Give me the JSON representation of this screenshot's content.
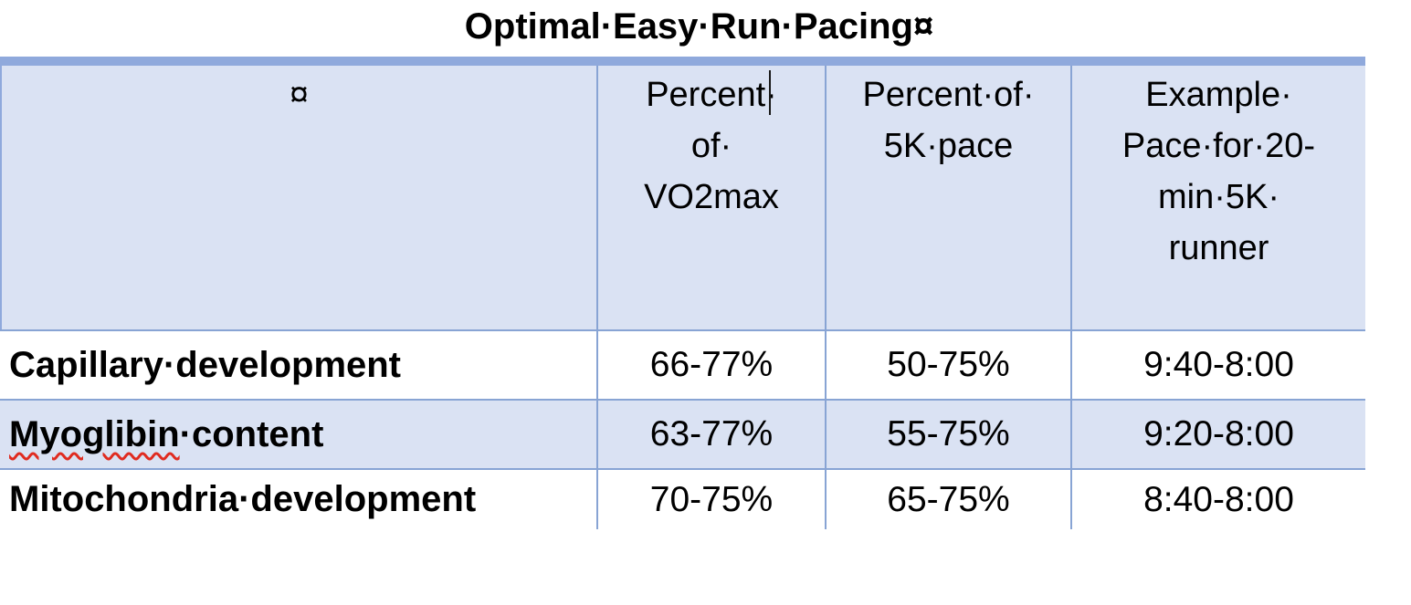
{
  "title": "Optimal·Easy·Run·Pacing¤",
  "table": {
    "columns": {
      "c0": "¤",
      "c1": "Percent·\nof·\nVO2max",
      "c2": "Percent·of·\n5K·pace",
      "c3": "Example·\nPace·for·20-\nmin·5K·\nrunner"
    },
    "rows": [
      {
        "misspelled": "",
        "label": "Capillary·development",
        "percent_vo2max": "66-77%",
        "percent_5k_pace": "50-75%",
        "example_pace": "9:40-8:00"
      },
      {
        "misspelled": "Myoglibin",
        "label": "·content",
        "percent_vo2max": "63-77%",
        "percent_5k_pace": "55-75%",
        "example_pace": "9:20-8:00"
      },
      {
        "misspelled": "",
        "label": "Mitochondria·development",
        "percent_vo2max": "70-75%",
        "percent_5k_pace": "65-75%",
        "example_pace": "8:40-8:00"
      }
    ]
  },
  "colors": {
    "accent_bar": "#8fa9dc",
    "band_bg": "#dae2f3",
    "grid_line": "#88a4d4",
    "spellcheck_underline": "#e02b20",
    "text": "#000000",
    "page_bg": "#ffffff"
  }
}
